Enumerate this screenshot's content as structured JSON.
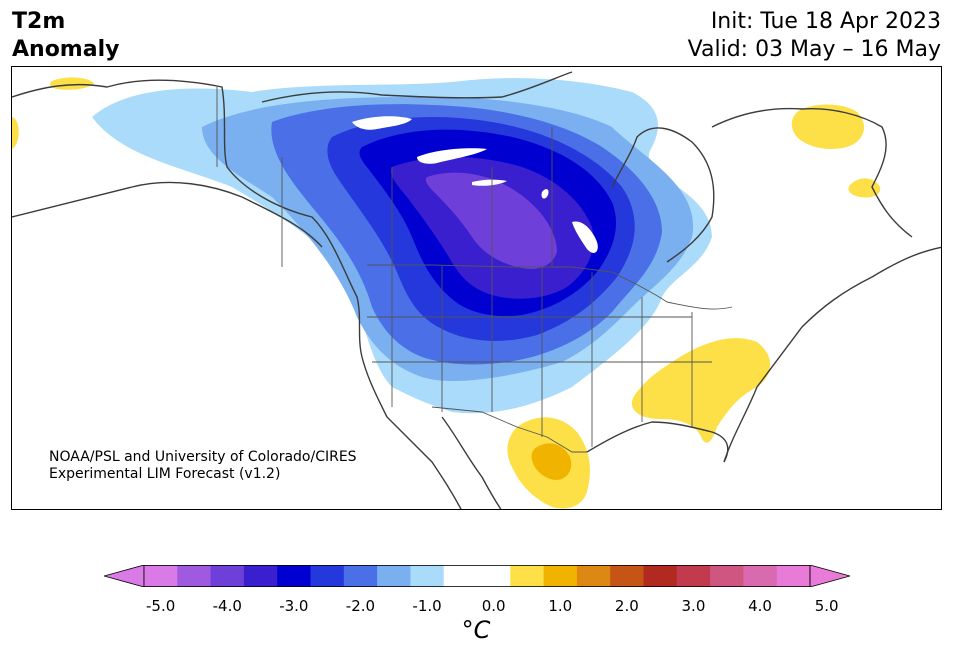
{
  "header": {
    "title_line1": "T2m",
    "title_line2": "Anomaly",
    "init_label": "Init: Tue 18 Apr 2023",
    "valid_label": "Valid: 03 May – 16 May"
  },
  "map": {
    "region": "North America",
    "credit_line1": "NOAA/PSL and University of Colorado/CIRES",
    "credit_line2": "Experimental LIM Forecast (v1.2)",
    "anomaly_regions": [
      {
        "area": "Northern Plains / Canadian Prairies",
        "min_anomaly": -4.0,
        "color": "#6f3fd9"
      },
      {
        "area": "Western and Central Canada",
        "min_anomaly": -3.0,
        "color": "#0000d0"
      },
      {
        "area": "Southeastern US",
        "max_anomaly": 1.0,
        "color": "#fde047"
      },
      {
        "area": "Northern Mexico",
        "max_anomaly": 1.5,
        "color": "#f0b400"
      },
      {
        "area": "Labrador / Quebec",
        "max_anomaly": 1.0,
        "color": "#fde047"
      }
    ]
  },
  "colorbar": {
    "unit": "°C",
    "tick_labels": [
      "-5.0",
      "-4.0",
      "-3.0",
      "-2.0",
      "-1.0",
      "0.0",
      "1.0",
      "2.0",
      "3.0",
      "4.0",
      "5.0"
    ],
    "colors": [
      "#d97ae6",
      "#a05ae0",
      "#6f3fd9",
      "#3a1fcf",
      "#0000d0",
      "#2438dc",
      "#4a6fe6",
      "#7aaff0",
      "#aadbfa",
      "#ffffff",
      "#ffffff",
      "#fde047",
      "#f0b400",
      "#dc8812",
      "#c65414",
      "#b02a20",
      "#c23a4e",
      "#ce5680",
      "#da6ab0",
      "#e87ad8"
    ],
    "extend_left_color": "#d97ae6",
    "extend_right_color": "#e87ad8"
  }
}
